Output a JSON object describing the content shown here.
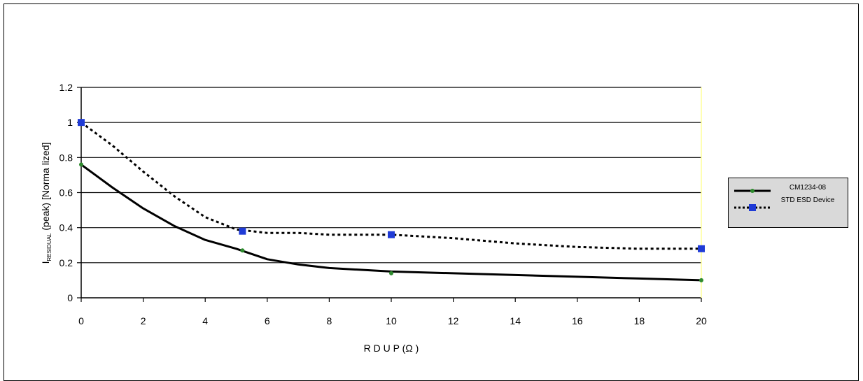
{
  "chart_data": {
    "type": "line",
    "title": "",
    "xlabel": "R D U P (Ω )",
    "ylabel": {
      "main": "I",
      "subscript": "RESIDUAL",
      "rest": " (peak)  [Norma lized]"
    },
    "xlim": [
      0,
      20
    ],
    "ylim": [
      0,
      1.2
    ],
    "x_ticks": [
      "0",
      "2",
      "4",
      "6",
      "8",
      "10",
      "12",
      "14",
      "16",
      "18",
      "20"
    ],
    "y_ticks": [
      "0",
      "0.2",
      "0.4",
      "0.6",
      "0.8",
      "1",
      "1.2"
    ],
    "grid": "horizontal",
    "legend_position": "right",
    "series": [
      {
        "name": "CM1234-08",
        "style": "solid",
        "color": "#000000",
        "marker_color": "#2e8b2e",
        "points": [
          [
            0,
            0.76
          ],
          [
            5.2,
            0.27
          ],
          [
            10,
            0.14
          ],
          [
            20,
            0.1
          ]
        ],
        "curve": [
          [
            0,
            0.76
          ],
          [
            1,
            0.63
          ],
          [
            2,
            0.51
          ],
          [
            3,
            0.41
          ],
          [
            4,
            0.33
          ],
          [
            5,
            0.28
          ],
          [
            6,
            0.22
          ],
          [
            7,
            0.19
          ],
          [
            8,
            0.17
          ],
          [
            9,
            0.16
          ],
          [
            10,
            0.15
          ],
          [
            12,
            0.14
          ],
          [
            14,
            0.13
          ],
          [
            16,
            0.12
          ],
          [
            18,
            0.11
          ],
          [
            20,
            0.1
          ]
        ]
      },
      {
        "name": "STD ESD Device",
        "style": "dotted",
        "color": "#000000",
        "marker_color": "#1f3bd6",
        "points": [
          [
            0,
            1.0
          ],
          [
            5.2,
            0.38
          ],
          [
            10,
            0.36
          ],
          [
            20,
            0.28
          ]
        ],
        "curve": [
          [
            0,
            1.0
          ],
          [
            1,
            0.87
          ],
          [
            2,
            0.72
          ],
          [
            3,
            0.58
          ],
          [
            4,
            0.46
          ],
          [
            5,
            0.39
          ],
          [
            6,
            0.37
          ],
          [
            7,
            0.37
          ],
          [
            8,
            0.36
          ],
          [
            9,
            0.36
          ],
          [
            10,
            0.36
          ],
          [
            12,
            0.34
          ],
          [
            14,
            0.31
          ],
          [
            16,
            0.29
          ],
          [
            18,
            0.28
          ],
          [
            20,
            0.28
          ]
        ]
      }
    ]
  },
  "colors": {
    "plot_background": "#ffffff",
    "gridline": "#000000",
    "right_border": "#ffff99",
    "legend_background": "#d9d9d9"
  }
}
